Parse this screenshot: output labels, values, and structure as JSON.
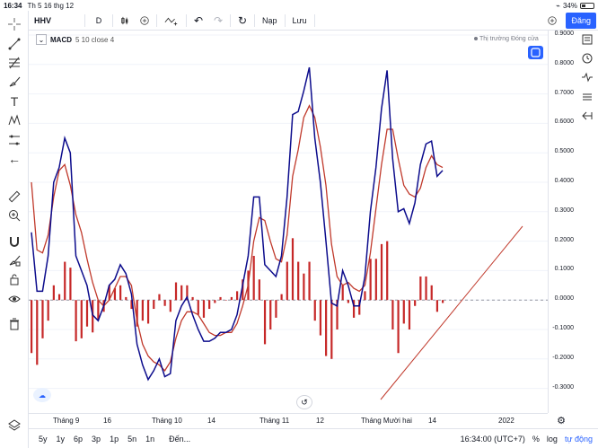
{
  "status_bar": {
    "time": "16:34",
    "date": "Th 5 16 thg 12",
    "battery": "34%",
    "battery_level": 0.34
  },
  "toolbar": {
    "symbol": "HHV",
    "interval": "D",
    "undo_icon": "undo-icon",
    "redo_icon": "redo-icon",
    "load_label": "Nạp",
    "save_label": "Lưu",
    "publish_label": "Đăng"
  },
  "legend": {
    "indicator": "MACD",
    "params": "5 10 close 4"
  },
  "market_status": "Thị trường Đóng cửa",
  "price_axis": [
    "0.9000",
    "0.8000",
    "0.7000",
    "0.6000",
    "0.5000",
    "0.4000",
    "0.3000",
    "0.2000",
    "0.1000",
    "0.0000",
    "-0.1000",
    "-0.2000",
    "-0.3000"
  ],
  "time_axis": [
    "Tháng 9",
    "16",
    "Tháng 10",
    "14",
    "Tháng 11",
    "12",
    "Tháng Mười hai",
    "14",
    "2022"
  ],
  "bottom_bar": {
    "ranges": [
      "5y",
      "1y",
      "6p",
      "3p",
      "1p",
      "5n",
      "1n"
    ],
    "goto_label": "Đến...",
    "clock": "16:34:00 (UTC+7)",
    "percent_label": "%",
    "log_label": "log",
    "auto_label": "tự động"
  },
  "colors": {
    "macd_line": "#0c0c8c",
    "signal_line": "#c0392b",
    "histogram": "#c62828",
    "accent": "#2962ff"
  },
  "chart_data": {
    "type": "line",
    "ylim": [
      -0.35,
      0.92
    ],
    "x": [
      0,
      1,
      2,
      3,
      4,
      5,
      6,
      7,
      8,
      9,
      10,
      11,
      12,
      13,
      14,
      15,
      16,
      17,
      18,
      19,
      20,
      21,
      22,
      23,
      24,
      25,
      26,
      27,
      28,
      29,
      30,
      31,
      32,
      33,
      34,
      35,
      36,
      37,
      38,
      39,
      40,
      41,
      42,
      43,
      44,
      45,
      46,
      47,
      48,
      49,
      50,
      51,
      52,
      53,
      54,
      55,
      56,
      57,
      58,
      59,
      60,
      61,
      62,
      63,
      64,
      65,
      66,
      67,
      68,
      69,
      70,
      71,
      72,
      73,
      74
    ],
    "series": [
      {
        "values": [
          0.23,
          0.03,
          0.03,
          0.15,
          0.4,
          0.45,
          0.55,
          0.5,
          0.15,
          0.1,
          0.05,
          -0.05,
          -0.07,
          -0.02,
          0.05,
          0.07,
          0.12,
          0.09,
          0.02,
          -0.15,
          -0.22,
          -0.27,
          -0.24,
          -0.2,
          -0.26,
          -0.25,
          -0.07,
          -0.02,
          0.01,
          -0.05,
          -0.1,
          -0.14,
          -0.14,
          -0.13,
          -0.11,
          -0.11,
          -0.1,
          -0.05,
          0.05,
          0.15,
          0.35,
          0.35,
          0.12,
          0.1,
          0.08,
          0.15,
          0.35,
          0.63,
          0.64,
          0.71,
          0.79,
          0.55,
          0.4,
          0.2,
          -0.01,
          -0.02,
          0.1,
          0.05,
          -0.02,
          -0.02,
          0.08,
          0.3,
          0.45,
          0.65,
          0.78,
          0.48,
          0.3,
          0.31,
          0.26,
          0.33,
          0.46,
          0.53,
          0.54,
          0.42,
          0.44
        ]
      },
      {
        "values": [
          0.4,
          0.17,
          0.16,
          0.22,
          0.35,
          0.44,
          0.46,
          0.39,
          0.29,
          0.23,
          0.14,
          0.06,
          0.0,
          -0.02,
          0.0,
          0.04,
          0.08,
          0.08,
          0.05,
          -0.07,
          -0.15,
          -0.19,
          -0.21,
          -0.22,
          -0.24,
          -0.21,
          -0.13,
          -0.07,
          -0.04,
          -0.04,
          -0.05,
          -0.08,
          -0.11,
          -0.12,
          -0.12,
          -0.11,
          -0.11,
          -0.08,
          -0.02,
          0.05,
          0.2,
          0.28,
          0.27,
          0.2,
          0.14,
          0.13,
          0.22,
          0.42,
          0.51,
          0.62,
          0.66,
          0.62,
          0.52,
          0.39,
          0.19,
          0.08,
          0.05,
          0.06,
          0.04,
          0.03,
          0.05,
          0.16,
          0.31,
          0.46,
          0.58,
          0.58,
          0.48,
          0.39,
          0.36,
          0.35,
          0.38,
          0.45,
          0.49,
          0.46,
          0.45
        ]
      },
      {
        "values": [
          -0.18,
          -0.22,
          -0.13,
          -0.07,
          0.05,
          0.02,
          0.13,
          0.11,
          -0.14,
          -0.13,
          -0.09,
          -0.11,
          -0.07,
          -0.04,
          0.05,
          0.04,
          0.05,
          0.01,
          -0.03,
          -0.09,
          -0.07,
          -0.08,
          -0.03,
          0.02,
          -0.02,
          -0.04,
          0.06,
          0.05,
          0.05,
          0.01,
          -0.05,
          -0.06,
          -0.03,
          -0.01,
          0.01,
          0.0,
          0.01,
          0.03,
          0.07,
          0.1,
          0.15,
          0.07,
          -0.15,
          -0.1,
          -0.06,
          0.02,
          0.13,
          0.21,
          0.13,
          0.09,
          0.13,
          -0.07,
          -0.12,
          -0.19,
          -0.2,
          -0.1,
          0.05,
          -0.01,
          -0.06,
          -0.05,
          0.03,
          0.14,
          0.14,
          0.19,
          0.2,
          -0.1,
          -0.18,
          -0.08,
          -0.1,
          -0.02,
          0.08,
          0.08,
          0.05,
          -0.04,
          -0.01
        ]
      }
    ]
  }
}
